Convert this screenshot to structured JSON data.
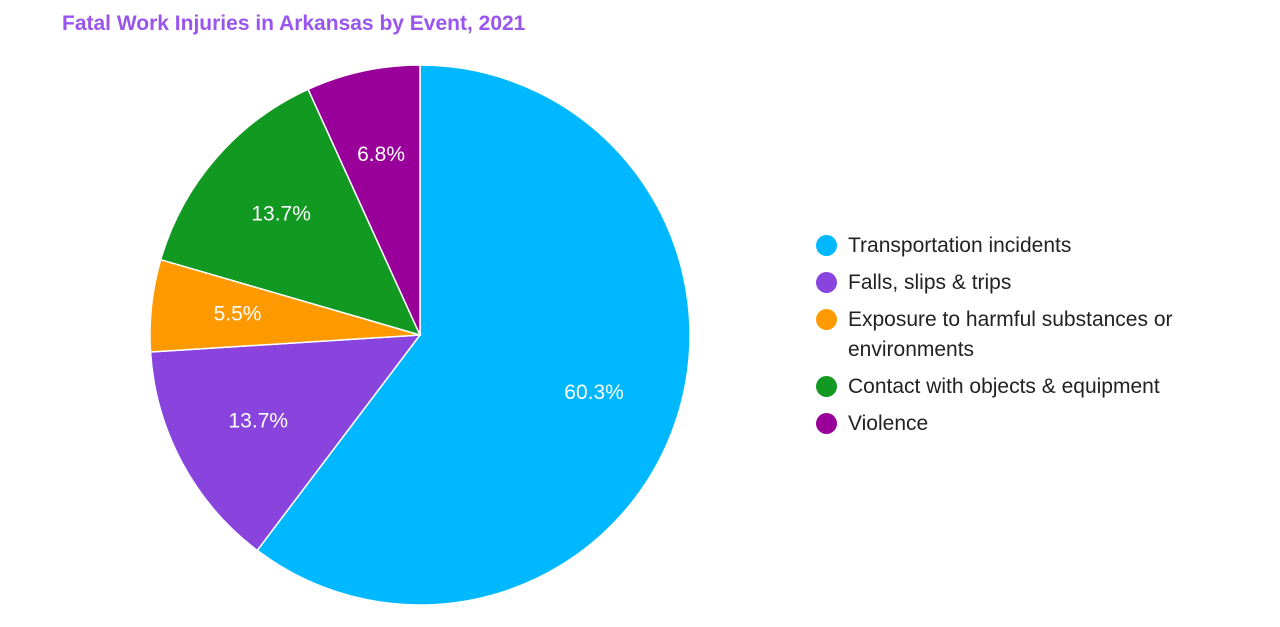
{
  "chart_data": {
    "type": "pie",
    "title": "Fatal Work Injuries in Arkansas by Event, 2021",
    "categories": [
      "Transportation incidents",
      "Falls, slips & trips",
      "Exposure to harmful substances or environments",
      "Contact with objects & equipment",
      "Violence"
    ],
    "values": [
      60.3,
      13.7,
      5.5,
      13.7,
      6.8
    ],
    "labels": [
      "60.3%",
      "13.7%",
      "5.5%",
      "13.7%",
      "6.8%"
    ],
    "colors": [
      "#00b8ff",
      "#8844dd",
      "#ff9900",
      "#119922",
      "#990099"
    ],
    "legend_position": "right"
  }
}
